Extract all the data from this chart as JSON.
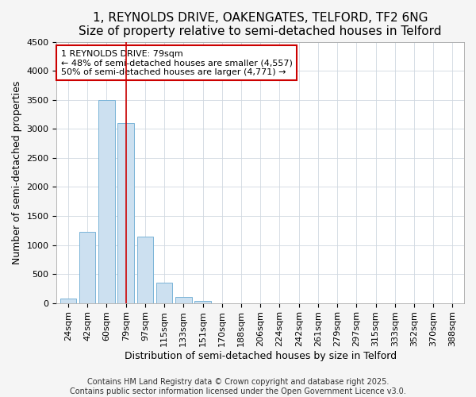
{
  "title": "1, REYNOLDS DRIVE, OAKENGATES, TELFORD, TF2 6NG",
  "subtitle": "Size of property relative to semi-detached houses in Telford",
  "xlabel": "Distribution of semi-detached houses by size in Telford",
  "ylabel": "Number of semi-detached properties",
  "categories": [
    "24sqm",
    "42sqm",
    "60sqm",
    "79sqm",
    "97sqm",
    "115sqm",
    "133sqm",
    "151sqm",
    "170sqm",
    "188sqm",
    "206sqm",
    "224sqm",
    "242sqm",
    "261sqm",
    "279sqm",
    "297sqm",
    "315sqm",
    "333sqm",
    "352sqm",
    "370sqm",
    "388sqm"
  ],
  "values": [
    80,
    1220,
    3500,
    3100,
    1150,
    350,
    100,
    30,
    0,
    0,
    0,
    0,
    0,
    0,
    0,
    0,
    0,
    0,
    0,
    0,
    0
  ],
  "bar_color": "#cce0f0",
  "bar_edge_color": "#7ab4d8",
  "highlight_bar_index": 3,
  "highlight_line_color": "#cc0000",
  "annotation_line1": "1 REYNOLDS DRIVE: 79sqm",
  "annotation_line2": "← 48% of semi-detached houses are smaller (4,557)",
  "annotation_line3": "50% of semi-detached houses are larger (4,771) →",
  "annotation_box_color": "#ffffff",
  "annotation_box_edge_color": "#cc0000",
  "ylim": [
    0,
    4500
  ],
  "yticks": [
    0,
    500,
    1000,
    1500,
    2000,
    2500,
    3000,
    3500,
    4000,
    4500
  ],
  "footer_line1": "Contains HM Land Registry data © Crown copyright and database right 2025.",
  "footer_line2": "Contains public sector information licensed under the Open Government Licence v3.0.",
  "figure_background": "#f5f5f5",
  "plot_background": "#ffffff",
  "title_fontsize": 11,
  "xlabel_fontsize": 9,
  "ylabel_fontsize": 9,
  "tick_fontsize": 8,
  "annotation_fontsize": 8,
  "footer_fontsize": 7
}
